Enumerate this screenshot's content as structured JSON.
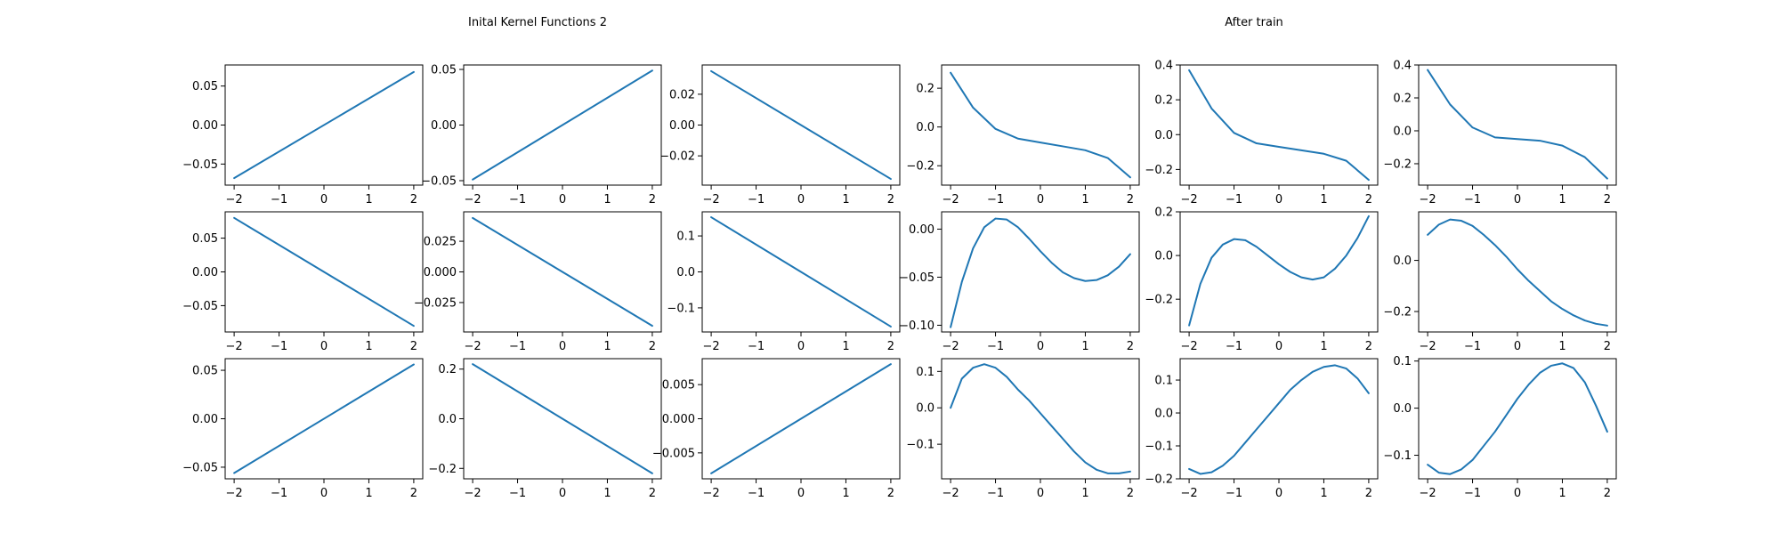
{
  "figure": {
    "left_title": "Inital Kernel Functions 2",
    "right_title": "After train"
  },
  "chart_data": [
    {
      "type": "line",
      "panel": "initial",
      "row": 1,
      "col": 1,
      "x": [
        -2,
        2
      ],
      "y": [
        -0.068,
        0.068
      ],
      "xlim": [
        -2.2,
        2.2
      ],
      "ylim": [
        -0.077,
        0.077
      ],
      "xticks": [
        -2,
        -1,
        0,
        1,
        2
      ],
      "yticks": [
        -0.05,
        0.0,
        0.05
      ],
      "yticklabels": [
        "−0.05",
        "0.00",
        "0.05"
      ],
      "color": "#1f77b4"
    },
    {
      "type": "line",
      "panel": "initial",
      "row": 1,
      "col": 2,
      "x": [
        -2,
        2
      ],
      "y": [
        -0.049,
        0.049
      ],
      "xlim": [
        -2.2,
        2.2
      ],
      "ylim": [
        -0.054,
        0.054
      ],
      "xticks": [
        -2,
        -1,
        0,
        1,
        2
      ],
      "yticks": [
        -0.05,
        0.0,
        0.05
      ],
      "yticklabels": [
        "−0.05",
        "0.00",
        "0.05"
      ],
      "color": "#1f77b4"
    },
    {
      "type": "line",
      "panel": "initial",
      "row": 1,
      "col": 3,
      "x": [
        -2,
        2
      ],
      "y": [
        0.035,
        -0.035
      ],
      "xlim": [
        -2.2,
        2.2
      ],
      "ylim": [
        -0.039,
        0.039
      ],
      "xticks": [
        -2,
        -1,
        0,
        1,
        2
      ],
      "yticks": [
        -0.02,
        0.0,
        0.02
      ],
      "yticklabels": [
        "−0.02",
        "0.00",
        "0.02"
      ],
      "color": "#1f77b4"
    },
    {
      "type": "line",
      "panel": "initial",
      "row": 2,
      "col": 1,
      "x": [
        -2,
        2
      ],
      "y": [
        0.08,
        -0.08
      ],
      "xlim": [
        -2.2,
        2.2
      ],
      "ylim": [
        -0.089,
        0.089
      ],
      "xticks": [
        -2,
        -1,
        0,
        1,
        2
      ],
      "yticks": [
        -0.05,
        0.0,
        0.05
      ],
      "yticklabels": [
        "−0.05",
        "0.00",
        "0.05"
      ],
      "color": "#1f77b4"
    },
    {
      "type": "line",
      "panel": "initial",
      "row": 2,
      "col": 2,
      "x": [
        -2,
        2
      ],
      "y": [
        0.044,
        -0.044
      ],
      "xlim": [
        -2.2,
        2.2
      ],
      "ylim": [
        -0.049,
        0.049
      ],
      "xticks": [
        -2,
        -1,
        0,
        1,
        2
      ],
      "yticks": [
        -0.025,
        0.0,
        0.025
      ],
      "yticklabels": [
        "−0.025",
        "0.000",
        "0.025"
      ],
      "color": "#1f77b4"
    },
    {
      "type": "line",
      "panel": "initial",
      "row": 2,
      "col": 3,
      "x": [
        -2,
        2
      ],
      "y": [
        0.152,
        -0.152
      ],
      "xlim": [
        -2.2,
        2.2
      ],
      "ylim": [
        -0.167,
        0.167
      ],
      "xticks": [
        -2,
        -1,
        0,
        1,
        2
      ],
      "yticks": [
        -0.1,
        0.0,
        0.1
      ],
      "yticklabels": [
        "−0.1",
        "0.0",
        "0.1"
      ],
      "color": "#1f77b4"
    },
    {
      "type": "line",
      "panel": "initial",
      "row": 3,
      "col": 1,
      "x": [
        -2,
        2
      ],
      "y": [
        -0.056,
        0.056
      ],
      "xlim": [
        -2.2,
        2.2
      ],
      "ylim": [
        -0.062,
        0.062
      ],
      "xticks": [
        -2,
        -1,
        0,
        1,
        2
      ],
      "yticks": [
        -0.05,
        0.0,
        0.05
      ],
      "yticklabels": [
        "−0.05",
        "0.00",
        "0.05"
      ],
      "color": "#1f77b4"
    },
    {
      "type": "line",
      "panel": "initial",
      "row": 3,
      "col": 2,
      "x": [
        -2,
        2
      ],
      "y": [
        0.22,
        -0.22
      ],
      "xlim": [
        -2.2,
        2.2
      ],
      "ylim": [
        -0.242,
        0.242
      ],
      "xticks": [
        -2,
        -1,
        0,
        1,
        2
      ],
      "yticks": [
        -0.2,
        0.0,
        0.2
      ],
      "yticklabels": [
        "−0.2",
        "0.0",
        "0.2"
      ],
      "color": "#1f77b4"
    },
    {
      "type": "line",
      "panel": "initial",
      "row": 3,
      "col": 3,
      "x": [
        -2,
        2
      ],
      "y": [
        -0.008,
        0.008
      ],
      "xlim": [
        -2.2,
        2.2
      ],
      "ylim": [
        -0.0088,
        0.0088
      ],
      "xticks": [
        -2,
        -1,
        0,
        1,
        2
      ],
      "yticks": [
        -0.005,
        0.0,
        0.005
      ],
      "yticklabels": [
        "−0.005",
        "0.000",
        "0.005"
      ],
      "color": "#1f77b4"
    },
    {
      "type": "line",
      "panel": "after",
      "row": 1,
      "col": 1,
      "x": [
        -2,
        -1.5,
        -1,
        -0.5,
        0,
        0.5,
        1,
        1.5,
        2
      ],
      "y": [
        0.28,
        0.1,
        -0.01,
        -0.06,
        -0.08,
        -0.1,
        -0.12,
        -0.16,
        -0.26
      ],
      "xlim": [
        -2.2,
        2.2
      ],
      "ylim": [
        -0.3,
        0.32
      ],
      "xticks": [
        -2,
        -1,
        0,
        1,
        2
      ],
      "yticks": [
        -0.2,
        0.0,
        0.2
      ],
      "yticklabels": [
        "−0.2",
        "0.0",
        "0.2"
      ],
      "color": "#1f77b4"
    },
    {
      "type": "line",
      "panel": "after",
      "row": 1,
      "col": 2,
      "x": [
        -2,
        -1.5,
        -1,
        -0.5,
        0,
        0.5,
        1,
        1.5,
        2
      ],
      "y": [
        0.37,
        0.15,
        0.01,
        -0.05,
        -0.07,
        -0.09,
        -0.11,
        -0.15,
        -0.26
      ],
      "xlim": [
        -2.2,
        2.2
      ],
      "ylim": [
        -0.29,
        0.4
      ],
      "xticks": [
        -2,
        -1,
        0,
        1,
        2
      ],
      "yticks": [
        -0.2,
        0.0,
        0.2,
        0.4
      ],
      "yticklabels": [
        "−0.2",
        "0.0",
        "0.2",
        "0.4"
      ],
      "color": "#1f77b4"
    },
    {
      "type": "line",
      "panel": "after",
      "row": 1,
      "col": 3,
      "x": [
        -2,
        -1.5,
        -1,
        -0.5,
        0,
        0.5,
        1,
        1.5,
        2
      ],
      "y": [
        0.37,
        0.16,
        0.02,
        -0.04,
        -0.05,
        -0.06,
        -0.09,
        -0.16,
        -0.29
      ],
      "xlim": [
        -2.2,
        2.2
      ],
      "ylim": [
        -0.33,
        0.4
      ],
      "xticks": [
        -2,
        -1,
        0,
        1,
        2
      ],
      "yticks": [
        -0.2,
        0.0,
        0.2,
        0.4
      ],
      "yticklabels": [
        "−0.2",
        "0.0",
        "0.2",
        "0.4"
      ],
      "color": "#1f77b4"
    },
    {
      "type": "line",
      "panel": "after",
      "row": 2,
      "col": 1,
      "x": [
        -2,
        -1.75,
        -1.5,
        -1.25,
        -1,
        -0.75,
        -0.5,
        -0.25,
        0,
        0.25,
        0.5,
        0.75,
        1,
        1.25,
        1.5,
        1.75,
        2
      ],
      "y": [
        -0.102,
        -0.055,
        -0.02,
        0.002,
        0.011,
        0.01,
        0.002,
        -0.01,
        -0.023,
        -0.035,
        -0.045,
        -0.051,
        -0.054,
        -0.053,
        -0.048,
        -0.039,
        -0.026
      ],
      "xlim": [
        -2.2,
        2.2
      ],
      "ylim": [
        -0.107,
        0.018
      ],
      "xticks": [
        -2,
        -1,
        0,
        1,
        2
      ],
      "yticks": [
        -0.1,
        -0.05,
        0.0
      ],
      "yticklabels": [
        "−0.10",
        "−0.05",
        "0.00"
      ],
      "color": "#1f77b4"
    },
    {
      "type": "line",
      "panel": "after",
      "row": 2,
      "col": 2,
      "x": [
        -2,
        -1.75,
        -1.5,
        -1.25,
        -1,
        -0.75,
        -0.5,
        -0.25,
        0,
        0.25,
        0.5,
        0.75,
        1,
        1.25,
        1.5,
        1.75,
        2
      ],
      "y": [
        -0.32,
        -0.13,
        -0.01,
        0.05,
        0.075,
        0.07,
        0.04,
        0.0,
        -0.04,
        -0.075,
        -0.1,
        -0.11,
        -0.1,
        -0.06,
        0.0,
        0.08,
        0.18
      ],
      "xlim": [
        -2.2,
        2.2
      ],
      "ylim": [
        -0.35,
        0.2
      ],
      "xticks": [
        -2,
        -1,
        0,
        1,
        2
      ],
      "yticks": [
        -0.2,
        0.0,
        0.2
      ],
      "yticklabels": [
        "−0.2",
        "0.0",
        "0.2"
      ],
      "color": "#1f77b4"
    },
    {
      "type": "line",
      "panel": "after",
      "row": 2,
      "col": 3,
      "x": [
        -2,
        -1.75,
        -1.5,
        -1.25,
        -1,
        -0.75,
        -0.5,
        -0.25,
        0,
        0.25,
        0.5,
        0.75,
        1,
        1.25,
        1.5,
        1.75,
        2
      ],
      "y": [
        0.1,
        0.14,
        0.16,
        0.155,
        0.135,
        0.1,
        0.06,
        0.015,
        -0.035,
        -0.08,
        -0.12,
        -0.16,
        -0.19,
        -0.215,
        -0.235,
        -0.248,
        -0.255
      ],
      "xlim": [
        -2.2,
        2.2
      ],
      "ylim": [
        -0.28,
        0.19
      ],
      "xticks": [
        -2,
        -1,
        0,
        1,
        2
      ],
      "yticks": [
        -0.2,
        0.0
      ],
      "yticklabels": [
        "−0.2",
        "0.0"
      ],
      "color": "#1f77b4"
    },
    {
      "type": "line",
      "panel": "after",
      "row": 3,
      "col": 1,
      "x": [
        -2,
        -1.75,
        -1.5,
        -1.25,
        -1,
        -0.75,
        -0.5,
        -0.25,
        0,
        0.25,
        0.5,
        0.75,
        1,
        1.25,
        1.5,
        1.75,
        2
      ],
      "y": [
        0.0,
        0.08,
        0.11,
        0.12,
        0.11,
        0.085,
        0.05,
        0.02,
        -0.015,
        -0.05,
        -0.085,
        -0.12,
        -0.15,
        -0.17,
        -0.18,
        -0.18,
        -0.175
      ],
      "xlim": [
        -2.2,
        2.2
      ],
      "ylim": [
        -0.195,
        0.135
      ],
      "xticks": [
        -2,
        -1,
        0,
        1,
        2
      ],
      "yticks": [
        -0.1,
        0.0,
        0.1
      ],
      "yticklabels": [
        "−0.1",
        "0.0",
        "0.1"
      ],
      "color": "#1f77b4"
    },
    {
      "type": "line",
      "panel": "after",
      "row": 3,
      "col": 2,
      "x": [
        -2,
        -1.75,
        -1.5,
        -1.25,
        -1,
        -0.75,
        -0.5,
        -0.25,
        0,
        0.25,
        0.5,
        0.75,
        1,
        1.25,
        1.5,
        1.75,
        2
      ],
      "y": [
        -0.17,
        -0.185,
        -0.18,
        -0.16,
        -0.13,
        -0.09,
        -0.05,
        -0.01,
        0.03,
        0.07,
        0.1,
        0.125,
        0.14,
        0.145,
        0.135,
        0.105,
        0.06
      ],
      "xlim": [
        -2.2,
        2.2
      ],
      "ylim": [
        -0.2,
        0.165
      ],
      "xticks": [
        -2,
        -1,
        0,
        1,
        2
      ],
      "yticks": [
        -0.2,
        -0.1,
        0.0,
        0.1
      ],
      "yticklabels": [
        "−0.2",
        "−0.1",
        "0.0",
        "0.1"
      ],
      "color": "#1f77b4"
    },
    {
      "type": "line",
      "panel": "after",
      "row": 3,
      "col": 3,
      "x": [
        -2,
        -1.75,
        -1.5,
        -1.25,
        -1,
        -0.75,
        -0.5,
        -0.25,
        0,
        0.25,
        0.5,
        0.75,
        1,
        1.25,
        1.5,
        1.75,
        2
      ],
      "y": [
        -0.12,
        -0.137,
        -0.14,
        -0.13,
        -0.11,
        -0.08,
        -0.05,
        -0.015,
        0.02,
        0.05,
        0.075,
        0.09,
        0.095,
        0.085,
        0.055,
        0.005,
        -0.05
      ],
      "xlim": [
        -2.2,
        2.2
      ],
      "ylim": [
        -0.15,
        0.105
      ],
      "xticks": [
        -2,
        -1,
        0,
        1,
        2
      ],
      "yticks": [
        -0.1,
        0.0,
        0.1
      ],
      "yticklabels": [
        "−0.1",
        "0.0",
        "0.1"
      ],
      "color": "#1f77b4"
    }
  ]
}
